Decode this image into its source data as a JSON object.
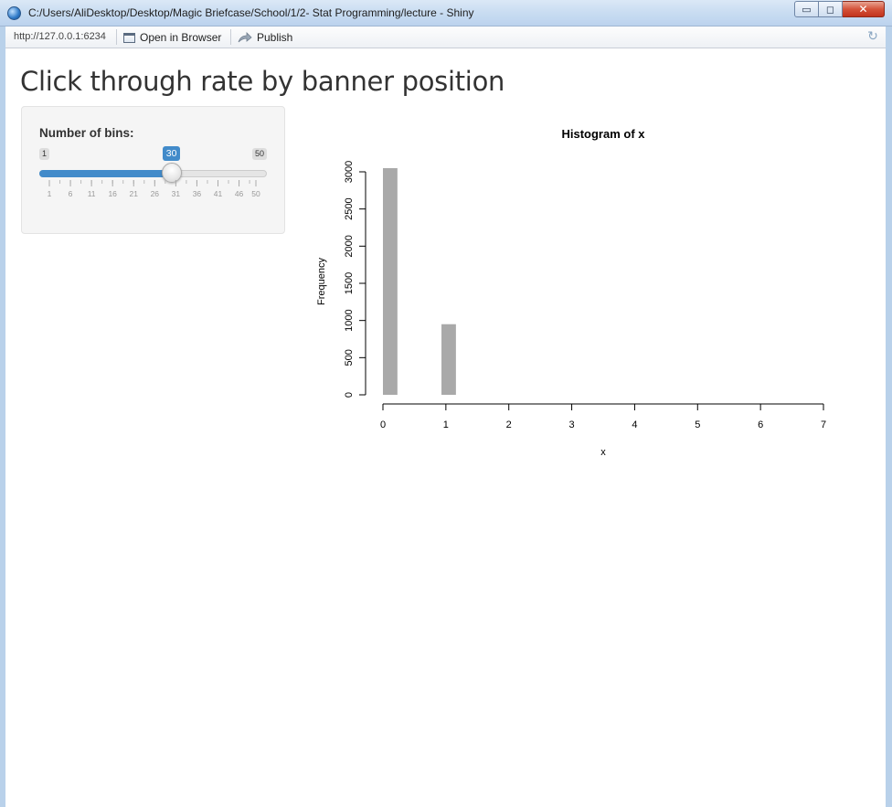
{
  "window": {
    "title": "C:/Users/AliDesktop/Desktop/Magic Briefcase/School/1/2- Stat Programming/lecture - Shiny",
    "minimize_glyph": "▭",
    "maximize_glyph": "◻",
    "close_glyph": "✕"
  },
  "toolbar": {
    "url": "http://127.0.0.1:6234",
    "open_browser_label": "Open in Browser",
    "publish_label": "Publish",
    "refresh_glyph": "↻"
  },
  "page": {
    "title": "Click through rate by banner position"
  },
  "slider": {
    "label": "Number of bins:",
    "min": 1,
    "max": 50,
    "value": 30,
    "min_label": "1",
    "max_label": "50",
    "value_label": "30",
    "tick_labels": [
      "1",
      "6",
      "11",
      "16",
      "21",
      "26",
      "31",
      "36",
      "41",
      "46",
      "50"
    ],
    "accent_color": "#428bca"
  },
  "chart_data": {
    "type": "bar",
    "title": "Histogram of x",
    "xlabel": "x",
    "ylabel": "Frequency",
    "xlim": [
      0,
      7
    ],
    "ylim": [
      0,
      3000
    ],
    "x_ticks": [
      "0",
      "1",
      "2",
      "3",
      "4",
      "5",
      "6",
      "7"
    ],
    "y_ticks": [
      "0",
      "500",
      "1000",
      "1500",
      "2000",
      "2500",
      "3000"
    ],
    "bar_color": "#a9a9a9",
    "bins": [
      {
        "x0": 0.0,
        "x1": 0.23,
        "count": 3050
      },
      {
        "x0": 0.93,
        "x1": 1.16,
        "count": 950
      }
    ],
    "grid": false
  }
}
